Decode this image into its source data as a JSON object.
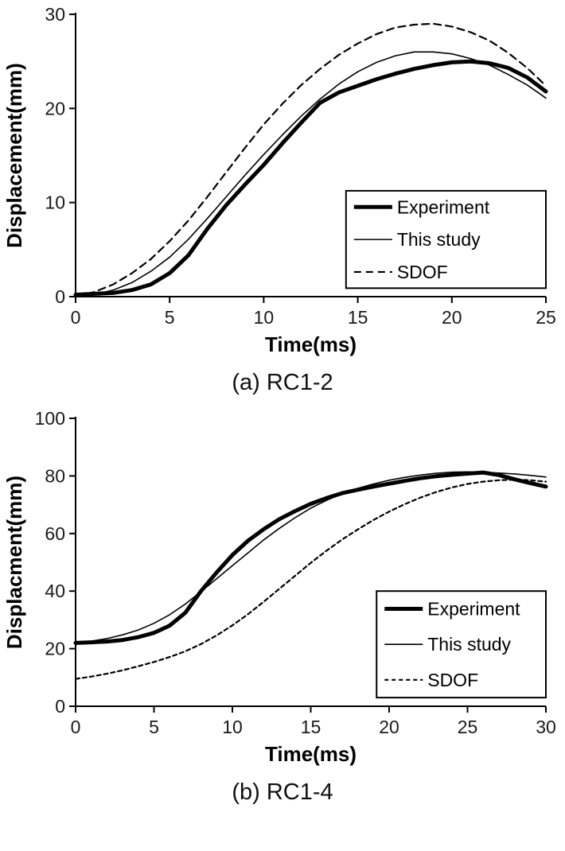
{
  "page": {
    "background": "#ffffff",
    "line_color": "#000000"
  },
  "chart_data": [
    {
      "type": "line",
      "caption": "(a) RC1-2",
      "xlabel": "Time(ms)",
      "ylabel": "Displacement(mm)",
      "xlim": [
        0,
        25
      ],
      "ylim": [
        0,
        30
      ],
      "xticks": [
        0,
        5,
        10,
        15,
        20,
        25
      ],
      "yticks": [
        0,
        10,
        20,
        30
      ],
      "grid": false,
      "legend_position": "lower right",
      "legend": {
        "x": 0.575,
        "y": 0.625,
        "w": 0.425,
        "h": 0.345
      },
      "series": [
        {
          "name": "Experiment",
          "style": "thick-solid",
          "color": "#000000",
          "x": [
            0,
            1,
            2,
            3,
            4,
            5,
            6,
            7,
            8,
            9,
            10,
            11,
            12,
            13,
            14,
            15,
            16,
            17,
            18,
            19,
            20,
            21,
            22,
            23,
            24,
            25
          ],
          "y": [
            0.2,
            0.3,
            0.4,
            0.7,
            1.3,
            2.5,
            4.4,
            7.2,
            9.7,
            11.9,
            14.0,
            16.3,
            18.5,
            20.6,
            21.7,
            22.4,
            23.1,
            23.7,
            24.2,
            24.6,
            24.9,
            25.0,
            24.8,
            24.3,
            23.3,
            21.8
          ]
        },
        {
          "name": "This study",
          "style": "thin-solid",
          "color": "#000000",
          "x": [
            0,
            1,
            2,
            3,
            4,
            5,
            6,
            7,
            8,
            9,
            10,
            11,
            12,
            13,
            14,
            15,
            16,
            17,
            18,
            19,
            20,
            21,
            22,
            23,
            24,
            25
          ],
          "y": [
            0.0,
            0.2,
            0.7,
            1.5,
            2.7,
            4.2,
            6.1,
            8.3,
            10.6,
            12.9,
            15.1,
            17.2,
            19.2,
            21.0,
            22.6,
            23.9,
            24.9,
            25.6,
            26.0,
            26.0,
            25.8,
            25.3,
            24.6,
            23.6,
            22.5,
            21.1
          ]
        },
        {
          "name": "SDOF",
          "style": "dashed",
          "dash": "9 6",
          "color": "#000000",
          "x": [
            0,
            1,
            2,
            3,
            4,
            5,
            6,
            7,
            8,
            9,
            10,
            11,
            12,
            13,
            14,
            15,
            16,
            17,
            18,
            19,
            20,
            21,
            22,
            23,
            24,
            25
          ],
          "y": [
            0.0,
            0.5,
            1.3,
            2.5,
            4.0,
            5.9,
            8.1,
            10.6,
            13.2,
            15.8,
            18.3,
            20.5,
            22.5,
            24.2,
            25.7,
            26.9,
            27.9,
            28.6,
            28.9,
            29.0,
            28.7,
            28.1,
            27.2,
            25.9,
            24.3,
            22.4
          ]
        }
      ]
    },
    {
      "type": "line",
      "caption": "(b) RC1-4",
      "xlabel": "Time(ms)",
      "ylabel": "Displacment(mm)",
      "xlim": [
        0,
        30
      ],
      "ylim": [
        0,
        100
      ],
      "xticks": [
        0,
        5,
        10,
        15,
        20,
        25,
        30
      ],
      "yticks": [
        0,
        20,
        40,
        60,
        80,
        100
      ],
      "grid": false,
      "legend_position": "lower right",
      "legend": {
        "x": 0.64,
        "y": 0.6,
        "w": 0.36,
        "h": 0.37
      },
      "series": [
        {
          "name": "Experiment",
          "style": "thick-solid",
          "color": "#000000",
          "x": [
            0,
            1,
            2,
            3,
            4,
            5,
            6,
            7,
            8,
            9,
            10,
            11,
            12,
            13,
            14,
            15,
            16,
            17,
            18,
            19,
            20,
            21,
            22,
            23,
            24,
            25,
            26,
            27,
            28,
            29,
            30
          ],
          "y": [
            22.0,
            22.2,
            22.5,
            23.0,
            24.0,
            25.5,
            28.0,
            32.5,
            40.0,
            46.5,
            52.5,
            57.5,
            61.5,
            65.0,
            67.8,
            70.3,
            72.3,
            74.0,
            75.2,
            76.3,
            77.3,
            78.3,
            79.2,
            79.9,
            80.4,
            80.8,
            81.2,
            80.3,
            78.8,
            77.5,
            76.3
          ]
        },
        {
          "name": "This study",
          "style": "thin-solid",
          "color": "#000000",
          "x": [
            0,
            1,
            2,
            3,
            4,
            5,
            6,
            7,
            8,
            9,
            10,
            11,
            12,
            13,
            14,
            15,
            16,
            17,
            18,
            19,
            20,
            21,
            22,
            23,
            24,
            25,
            26,
            27,
            28,
            29,
            30
          ],
          "y": [
            22.0,
            22.6,
            23.5,
            24.8,
            26.5,
            28.8,
            31.8,
            35.5,
            39.8,
            44.3,
            48.8,
            53.3,
            57.8,
            61.8,
            65.5,
            68.8,
            71.5,
            73.8,
            75.7,
            77.2,
            78.5,
            79.5,
            80.3,
            80.9,
            81.3,
            81.4,
            81.3,
            81.0,
            80.7,
            80.2,
            79.6
          ]
        },
        {
          "name": "SDOF",
          "style": "dashed",
          "dash": "5 4",
          "color": "#000000",
          "x": [
            0,
            1,
            2,
            3,
            4,
            5,
            6,
            7,
            8,
            9,
            10,
            11,
            12,
            13,
            14,
            15,
            16,
            17,
            18,
            19,
            20,
            21,
            22,
            23,
            24,
            25,
            26,
            27,
            28,
            29,
            30
          ],
          "y": [
            9.5,
            10.3,
            11.3,
            12.5,
            13.9,
            15.4,
            17.1,
            19.1,
            21.6,
            24.6,
            28.1,
            32.0,
            36.3,
            40.8,
            45.3,
            49.8,
            54.0,
            57.9,
            61.4,
            64.7,
            67.6,
            70.2,
            72.5,
            74.4,
            76.0,
            77.2,
            78.0,
            78.5,
            78.7,
            78.5,
            78.0
          ]
        }
      ]
    }
  ]
}
